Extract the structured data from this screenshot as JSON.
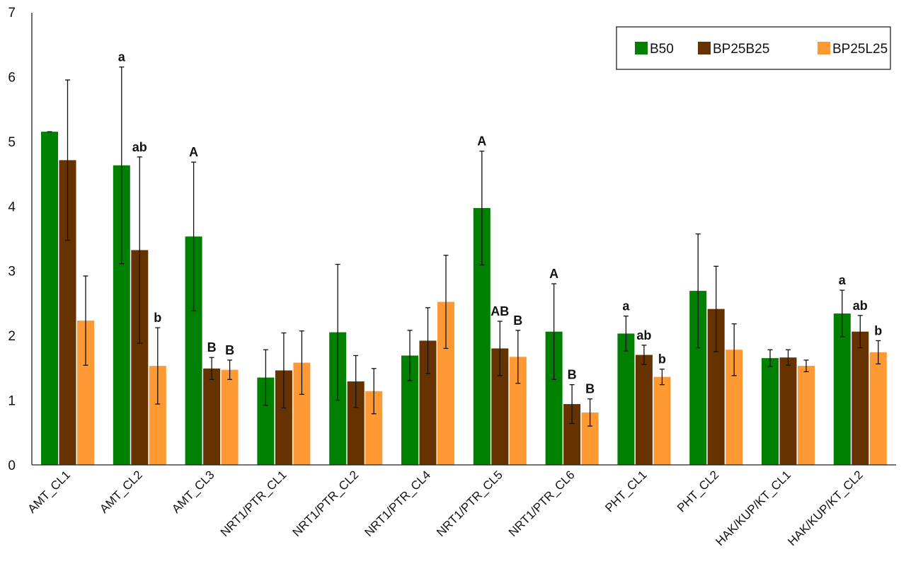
{
  "chart_data": {
    "type": "bar",
    "title": "",
    "xlabel": "",
    "ylabel": "",
    "ylim": [
      0,
      7
    ],
    "yticks": [
      0,
      1,
      2,
      3,
      4,
      5,
      6,
      7
    ],
    "grid": false,
    "legend_position": "top-right",
    "categories": [
      "AMT_CL1",
      "AMT_CL2",
      "AMT_CL3",
      "NRT1/PTR_CL1",
      "NRT1/PTR_CL2",
      "NRT1/PTR_CL4",
      "NRT1/PTR_CL5",
      "NRT1/PTR_CL6",
      "PHT_CL1",
      "PHT_CL2",
      "HAK/KUP/KT_CL1",
      "HAK/KUP/KT_CL2"
    ],
    "series": [
      {
        "name": "B50",
        "color": "#008000",
        "values": [
          5.15,
          4.63,
          3.53,
          1.35,
          2.05,
          1.69,
          3.97,
          2.06,
          2.03,
          2.69,
          1.65,
          2.34
        ],
        "errors": [
          0.0,
          1.52,
          1.15,
          0.43,
          1.05,
          0.39,
          0.88,
          0.74,
          0.27,
          0.88,
          0.13,
          0.36
        ],
        "letters": [
          "",
          "a",
          "A",
          "",
          "",
          "",
          "A",
          "A",
          "a",
          "",
          "",
          "a"
        ]
      },
      {
        "name": "BP25B25",
        "color": "#663300",
        "values": [
          4.71,
          3.32,
          1.49,
          1.46,
          1.29,
          1.92,
          1.8,
          0.94,
          1.7,
          2.41,
          1.66,
          2.06
        ],
        "errors": [
          1.24,
          1.44,
          0.17,
          0.58,
          0.4,
          0.51,
          0.42,
          0.3,
          0.15,
          0.66,
          0.12,
          0.25
        ],
        "letters": [
          "",
          "ab",
          "B",
          "",
          "",
          "",
          "AB",
          "B",
          "ab",
          "",
          "",
          "ab"
        ]
      },
      {
        "name": "BP25L25",
        "color": "#FF9933",
        "values": [
          2.23,
          1.53,
          1.47,
          1.58,
          1.14,
          2.52,
          1.67,
          0.81,
          1.36,
          1.78,
          1.53,
          1.74
        ],
        "errors": [
          0.69,
          0.59,
          0.15,
          0.49,
          0.35,
          0.72,
          0.41,
          0.21,
          0.12,
          0.4,
          0.09,
          0.18
        ],
        "letters": [
          "",
          "b",
          "B",
          "",
          "",
          "",
          "B",
          "B",
          "b",
          "",
          "",
          "b"
        ]
      }
    ]
  }
}
